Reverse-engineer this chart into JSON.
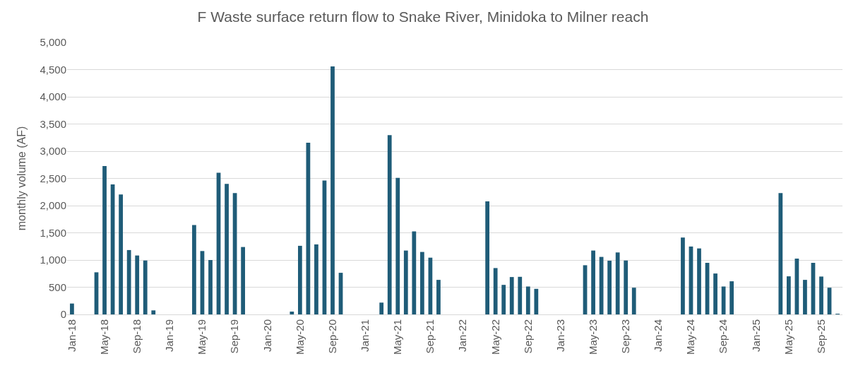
{
  "chart_data": {
    "type": "bar",
    "title": "F Waste surface return flow to Snake River, Minidoka to Milner reach",
    "ylabel": "monthly volume (AF)",
    "categories": [
      "Jan-18",
      null,
      null,
      null,
      "May-18",
      null,
      null,
      null,
      "Sep-18",
      null,
      null,
      null,
      "Jan-19",
      null,
      null,
      null,
      "May-19",
      null,
      null,
      null,
      "Sep-19",
      null,
      null,
      null,
      "Jan-20",
      null,
      null,
      null,
      "May-20",
      null,
      null,
      null,
      "Sep-20",
      null,
      null,
      null,
      "Jan-21",
      null,
      null,
      null,
      "May-21",
      null,
      null,
      null,
      "Sep-21",
      null,
      null,
      null,
      "Jan-22",
      null,
      null,
      null,
      "May-22",
      null,
      null,
      null,
      "Sep-22",
      null,
      null,
      null,
      "Jan-23",
      null,
      null,
      null,
      "May-23",
      null,
      null,
      null,
      "Sep-23",
      null,
      null,
      null,
      "Jan-24",
      null,
      null,
      null,
      "May-24",
      null,
      null,
      null,
      "Sep-24",
      null,
      null,
      null,
      "Jan-25",
      null,
      null,
      null,
      "May-25",
      null,
      null,
      null,
      "Sep-25",
      null,
      null
    ],
    "values": [
      200,
      0,
      0,
      774,
      2726,
      2391,
      2204,
      1183,
      1083,
      991,
      74,
      0,
      0,
      0,
      0,
      1643,
      1165,
      1000,
      2604,
      2400,
      2230,
      1239,
      0,
      0,
      0,
      0,
      0,
      52,
      1261,
      3157,
      1287,
      2461,
      4557,
      765,
      0,
      0,
      0,
      0,
      217,
      3296,
      2509,
      1174,
      1526,
      1148,
      1043,
      635,
      0,
      0,
      0,
      0,
      0,
      2078,
      852,
      543,
      687,
      691,
      513,
      470,
      0,
      0,
      0,
      0,
      0,
      904,
      1174,
      1057,
      987,
      1139,
      991,
      491,
      0,
      0,
      0,
      0,
      0,
      1413,
      1248,
      1213,
      948,
      752,
      513,
      609,
      0,
      0,
      0,
      0,
      0,
      2230,
      700,
      1026,
      635,
      948,
      696,
      491,
      10
    ],
    "color": "#1f5c78",
    "ylim": [
      0,
      5000
    ],
    "yticks": [
      0,
      500,
      {
        "value": 1000,
        "label": "1,000"
      },
      {
        "value": 1500,
        "label": "1,500"
      },
      {
        "value": 2000,
        "label": "2,000"
      },
      {
        "value": 2500,
        "label": "2,500"
      },
      {
        "value": 3000,
        "label": "3,000"
      },
      {
        "value": 3500,
        "label": "3,500"
      },
      {
        "value": 4000,
        "label": "4,000"
      },
      {
        "value": 4500,
        "label": "4,500"
      },
      {
        "value": 5000,
        "label": "5,000"
      }
    ],
    "grid": "y",
    "legend": false
  }
}
